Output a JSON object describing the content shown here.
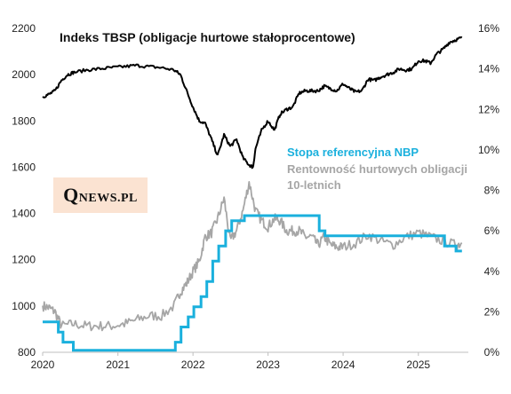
{
  "chart_data": {
    "type": "line",
    "title": "Indeks TBSP (obligacje hurtowe stałoprocentowe)",
    "logo": "QNEWS.PL",
    "x_ticks": [
      "2020",
      "2021",
      "2022",
      "2023",
      "2024",
      "2025"
    ],
    "xlim": [
      "2020-01-01",
      "2025-09-01"
    ],
    "y_left": {
      "ticks": [
        "800",
        "1000",
        "1200",
        "1400",
        "1600",
        "1800",
        "2000",
        "2200"
      ],
      "ylim": [
        800,
        2200
      ]
    },
    "y_right": {
      "ticks": [
        "0%",
        "2%",
        "4%",
        "6%",
        "8%",
        "10%",
        "12%",
        "14%",
        "16%"
      ],
      "ylim": [
        0,
        16
      ]
    },
    "grid": false,
    "legend": [
      "Stopa referencyjna NBP",
      "Rentowność hurtowych obligacji 10-letnich"
    ],
    "colors": {
      "tbsp": "#000000",
      "rate": "#1ab0dd",
      "yield": "#a6a6a6"
    },
    "series": [
      {
        "name": "Indeks TBSP",
        "axis": "left",
        "x": [
          "2020-01-01",
          "2020-02-01",
          "2020-03-01",
          "2020-04-01",
          "2020-05-01",
          "2020-06-01",
          "2020-08-01",
          "2020-10-01",
          "2020-12-01",
          "2021-02-01",
          "2021-04-01",
          "2021-06-01",
          "2021-08-01",
          "2021-10-01",
          "2021-11-01",
          "2021-12-01",
          "2022-01-01",
          "2022-02-01",
          "2022-03-01",
          "2022-04-01",
          "2022-05-01",
          "2022-06-01",
          "2022-07-01",
          "2022-08-01",
          "2022-09-01",
          "2022-10-01",
          "2022-10-20",
          "2022-11-01",
          "2022-12-01",
          "2023-01-01",
          "2023-02-01",
          "2023-03-01",
          "2023-04-01",
          "2023-05-01",
          "2023-06-01",
          "2023-07-01",
          "2023-08-01",
          "2023-09-01",
          "2023-10-01",
          "2023-11-01",
          "2023-12-01",
          "2024-01-01",
          "2024-02-01",
          "2024-03-01",
          "2024-04-01",
          "2024-05-01",
          "2024-06-01",
          "2024-07-01",
          "2024-08-01",
          "2024-09-01",
          "2024-10-01",
          "2024-11-01",
          "2024-12-01",
          "2025-01-01",
          "2025-02-01",
          "2025-03-01",
          "2025-04-01",
          "2025-05-01",
          "2025-06-01",
          "2025-07-01",
          "2025-08-01"
        ],
        "y": [
          1905,
          1915,
          1930,
          1975,
          2000,
          2010,
          2020,
          2025,
          2030,
          2035,
          2040,
          2035,
          2030,
          2020,
          2000,
          1930,
          1860,
          1800,
          1790,
          1720,
          1650,
          1740,
          1690,
          1720,
          1640,
          1610,
          1600,
          1680,
          1760,
          1800,
          1760,
          1830,
          1850,
          1860,
          1920,
          1930,
          1930,
          1930,
          1950,
          1940,
          1930,
          1960,
          1940,
          1925,
          1930,
          1980,
          1975,
          1990,
          2000,
          2010,
          2025,
          2020,
          2025,
          2060,
          2060,
          2050,
          2090,
          2110,
          2140,
          2150,
          2160
        ]
      },
      {
        "name": "Stopa referencyjna NBP",
        "axis": "right",
        "x": [
          "2020-01-01",
          "2020-03-17",
          "2020-04-09",
          "2020-05-29",
          "2021-10-07",
          "2021-11-04",
          "2021-12-09",
          "2022-01-05",
          "2022-02-09",
          "2022-03-09",
          "2022-04-07",
          "2022-05-06",
          "2022-06-09",
          "2022-07-08",
          "2022-09-08",
          "2023-09-07",
          "2023-10-05",
          "2025-05-08",
          "2025-07-03",
          "2025-08-01"
        ],
        "y": [
          1.5,
          1.0,
          0.5,
          0.1,
          0.5,
          1.25,
          1.75,
          2.25,
          2.75,
          3.5,
          4.5,
          5.25,
          6.0,
          6.5,
          6.75,
          6.0,
          5.75,
          5.25,
          5.0,
          5.0
        ]
      },
      {
        "name": "Rentowność hurtowych obligacji 10-letnich",
        "axis": "right",
        "x": [
          "2020-01-01",
          "2020-02-01",
          "2020-03-01",
          "2020-04-01",
          "2020-06-01",
          "2020-08-01",
          "2020-10-01",
          "2020-12-01",
          "2021-02-01",
          "2021-04-01",
          "2021-06-01",
          "2021-08-01",
          "2021-10-01",
          "2021-11-01",
          "2021-12-01",
          "2022-01-01",
          "2022-02-01",
          "2022-03-01",
          "2022-04-01",
          "2022-05-01",
          "2022-06-01",
          "2022-07-01",
          "2022-08-01",
          "2022-09-01",
          "2022-10-01",
          "2022-11-01",
          "2022-12-01",
          "2023-01-01",
          "2023-02-01",
          "2023-03-01",
          "2023-04-01",
          "2023-05-01",
          "2023-06-01",
          "2023-07-01",
          "2023-08-01",
          "2023-09-01",
          "2023-10-01",
          "2023-11-01",
          "2023-12-01",
          "2024-01-01",
          "2024-03-01",
          "2024-05-01",
          "2024-07-01",
          "2024-09-01",
          "2024-11-01",
          "2025-01-01",
          "2025-03-01",
          "2025-05-01",
          "2025-07-01",
          "2025-08-01"
        ],
        "y": [
          2.3,
          2.2,
          2.0,
          1.3,
          1.4,
          1.3,
          1.3,
          1.3,
          1.4,
          1.6,
          1.8,
          1.8,
          2.3,
          3.0,
          3.4,
          4.0,
          4.5,
          5.7,
          5.9,
          6.6,
          7.6,
          5.5,
          6.0,
          7.0,
          8.4,
          7.0,
          6.5,
          6.2,
          6.6,
          6.5,
          6.0,
          6.0,
          6.0,
          5.7,
          5.7,
          5.3,
          5.7,
          5.3,
          5.2,
          5.2,
          5.4,
          5.8,
          5.5,
          5.3,
          5.7,
          5.9,
          5.7,
          5.5,
          5.3,
          5.4
        ]
      }
    ]
  }
}
